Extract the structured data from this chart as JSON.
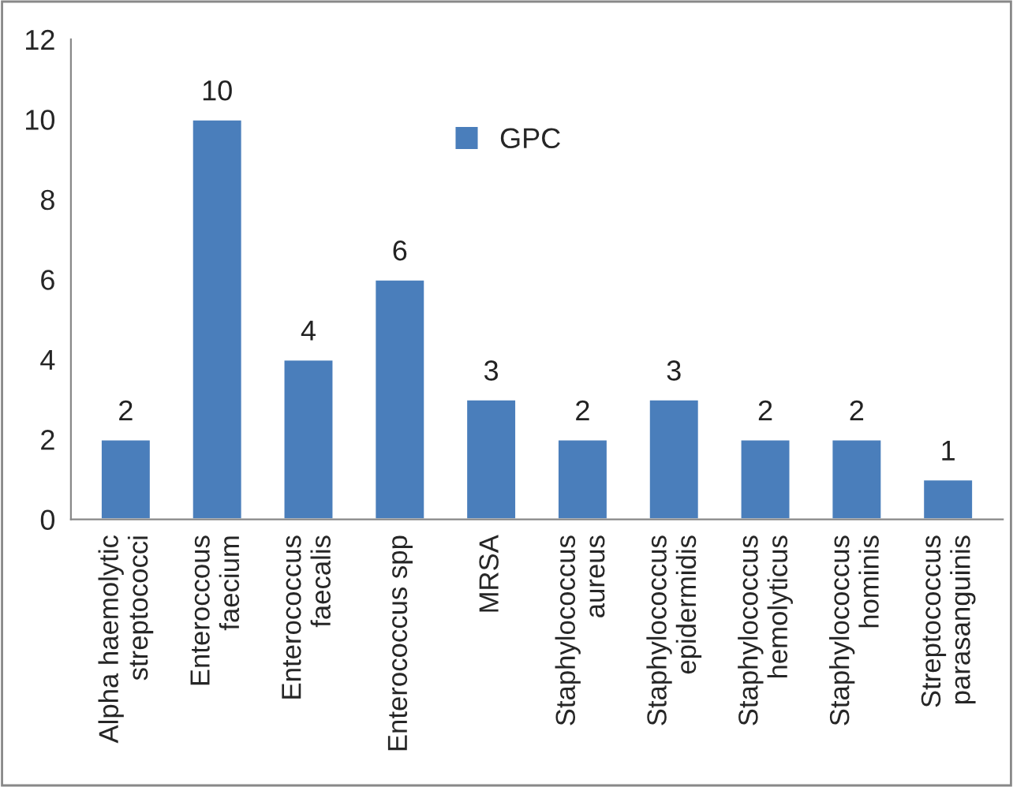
{
  "chart_data": {
    "type": "bar",
    "categories": [
      "Alpha haemolytic\nstreptococci",
      "Enteroccous\nfaecium",
      "Enterococcus\nfaecalis",
      "Enterococcus spp",
      "MRSA",
      "Staphylococcus\naureus",
      "Staphylococcus\nepidermidis",
      "Staphylococcus\nhemolyticus",
      "Staphylococcus\nhominis",
      "Streptococcus\nparasanguinis"
    ],
    "series": [
      {
        "name": "GPC",
        "color": "#4a7ebb",
        "values": [
          2,
          10,
          4,
          6,
          3,
          2,
          3,
          2,
          2,
          1
        ]
      }
    ],
    "ylim": [
      0,
      12
    ],
    "yticks": [
      0,
      2,
      4,
      6,
      8,
      10,
      12
    ],
    "grid": false,
    "legend": "top",
    "data_labels": true
  }
}
